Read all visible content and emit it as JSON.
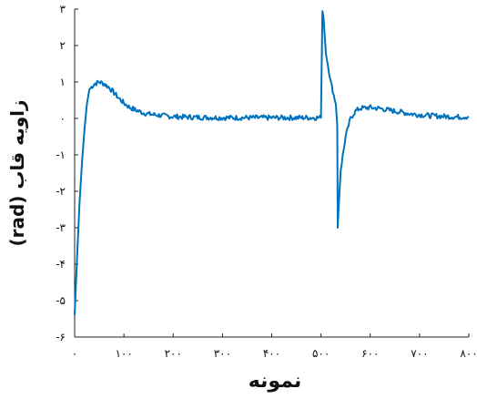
{
  "chart_data": {
    "type": "line",
    "title": "",
    "xlabel": "نمونه",
    "ylabel": "زاویه قاب (rad)",
    "xlim": [
      0,
      800
    ],
    "ylim": [
      -6,
      3
    ],
    "grid": false,
    "legend": "none",
    "x_ticks": [
      0,
      100,
      200,
      300,
      400,
      500,
      600,
      700,
      800
    ],
    "x_tick_labels": [
      "۰",
      "۱۰۰",
      "۲۰۰",
      "۳۰۰",
      "۴۰۰",
      "۵۰۰",
      "۶۰۰",
      "۷۰۰",
      "۸۰۰"
    ],
    "y_ticks": [
      3,
      2,
      1,
      0,
      -1,
      -2,
      -3,
      -4,
      -5,
      -6
    ],
    "y_tick_labels": [
      "۳",
      "۲",
      "۱",
      "۰",
      "-۱",
      "-۲",
      "-۳",
      "-۴",
      "-۵",
      "-۶"
    ],
    "series": [
      {
        "color": "#0072bd",
        "x": [
          0,
          5,
          10,
          15,
          20,
          25,
          30,
          40,
          50,
          60,
          70,
          80,
          90,
          100,
          110,
          120,
          130,
          140,
          150,
          175,
          200,
          250,
          300,
          350,
          400,
          450,
          500,
          503,
          505,
          510,
          520,
          530,
          533,
          534,
          536,
          540,
          550,
          560,
          570,
          580,
          600,
          620,
          640,
          660,
          680,
          700,
          720,
          740,
          760,
          780,
          800
        ],
        "y": [
          -5.4,
          -3.8,
          -2.3,
          -1.2,
          -0.3,
          0.4,
          0.8,
          0.95,
          1.0,
          0.95,
          0.85,
          0.7,
          0.55,
          0.42,
          0.32,
          0.25,
          0.2,
          0.15,
          0.12,
          0.08,
          0.05,
          0.03,
          0.02,
          0.02,
          0.02,
          0.02,
          0.02,
          3.0,
          2.8,
          1.8,
          1.0,
          0.4,
          -0.2,
          -3.0,
          -2.4,
          -1.4,
          -0.5,
          0.0,
          0.2,
          0.28,
          0.3,
          0.27,
          0.22,
          0.18,
          0.13,
          0.1,
          0.08,
          0.06,
          0.05,
          0.04,
          0.05
        ]
      }
    ]
  }
}
